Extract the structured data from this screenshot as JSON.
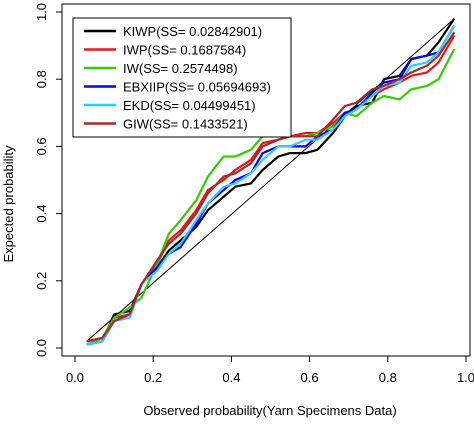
{
  "chart_data": {
    "type": "line",
    "xlabel": "Observed probability(Yarn Specimens Data)",
    "ylabel": "Expected probability",
    "xlim": [
      0,
      1
    ],
    "ylim": [
      0,
      1
    ],
    "x_ticks": [
      "0.0",
      "0.2",
      "0.4",
      "0.6",
      "0.8",
      "1.0"
    ],
    "y_ticks": [
      "0.0",
      "0.2",
      "0.4",
      "0.6",
      "0.8",
      "1.0"
    ],
    "grid": false,
    "legend_position": "top-left",
    "reference_line": {
      "from": [
        0.03,
        0.02
      ],
      "to": [
        0.97,
        0.98
      ],
      "color": "#000000"
    },
    "x": [
      0.03,
      0.07,
      0.1,
      0.14,
      0.17,
      0.21,
      0.24,
      0.27,
      0.31,
      0.34,
      0.38,
      0.41,
      0.45,
      0.48,
      0.52,
      0.55,
      0.59,
      0.62,
      0.66,
      0.69,
      0.72,
      0.76,
      0.79,
      0.83,
      0.86,
      0.9,
      0.93,
      0.97
    ],
    "series": [
      {
        "name": "KIWP(SS= 0.02842901)",
        "color": "#000000",
        "values": [
          0.01,
          0.02,
          0.1,
          0.11,
          0.19,
          0.24,
          0.29,
          0.32,
          0.36,
          0.41,
          0.45,
          0.48,
          0.49,
          0.53,
          0.57,
          0.58,
          0.58,
          0.59,
          0.64,
          0.69,
          0.72,
          0.73,
          0.8,
          0.81,
          0.86,
          0.87,
          0.91,
          0.98
        ]
      },
      {
        "name": "IWP(SS= 0.1687584)",
        "color": "#e31a1c",
        "values": [
          0.02,
          0.03,
          0.09,
          0.1,
          0.19,
          0.25,
          0.32,
          0.35,
          0.41,
          0.47,
          0.5,
          0.53,
          0.56,
          0.61,
          0.62,
          0.63,
          0.64,
          0.64,
          0.67,
          0.7,
          0.71,
          0.75,
          0.77,
          0.79,
          0.81,
          0.82,
          0.85,
          0.93
        ]
      },
      {
        "name": "IW(SS= 0.2574498)",
        "color": "#33cc00",
        "values": [
          0.01,
          0.03,
          0.09,
          0.12,
          0.15,
          0.25,
          0.34,
          0.38,
          0.44,
          0.51,
          0.57,
          0.57,
          0.59,
          0.63,
          0.63,
          0.63,
          0.63,
          0.64,
          0.66,
          0.7,
          0.69,
          0.73,
          0.75,
          0.74,
          0.77,
          0.78,
          0.8,
          0.89
        ]
      },
      {
        "name": "EBXIIP(SS= 0.05694693)",
        "color": "#0000ff",
        "values": [
          0.01,
          0.02,
          0.08,
          0.1,
          0.19,
          0.24,
          0.28,
          0.3,
          0.37,
          0.43,
          0.47,
          0.5,
          0.52,
          0.58,
          0.6,
          0.6,
          0.6,
          0.63,
          0.65,
          0.7,
          0.71,
          0.76,
          0.79,
          0.8,
          0.86,
          0.87,
          0.88,
          0.96
        ]
      },
      {
        "name": "EKD(SS= 0.04499451)",
        "color": "#33ccff",
        "values": [
          0.01,
          0.02,
          0.08,
          0.09,
          0.19,
          0.23,
          0.28,
          0.31,
          0.38,
          0.43,
          0.48,
          0.49,
          0.52,
          0.56,
          0.6,
          0.6,
          0.62,
          0.62,
          0.65,
          0.69,
          0.71,
          0.75,
          0.78,
          0.79,
          0.84,
          0.85,
          0.88,
          0.96
        ]
      },
      {
        "name": "GIW(SS= 0.1433521)",
        "color": "#a52a2a",
        "values": [
          0.02,
          0.03,
          0.08,
          0.1,
          0.19,
          0.26,
          0.31,
          0.34,
          0.4,
          0.46,
          0.51,
          0.52,
          0.55,
          0.6,
          0.62,
          0.63,
          0.63,
          0.63,
          0.68,
          0.72,
          0.73,
          0.77,
          0.78,
          0.8,
          0.82,
          0.84,
          0.87,
          0.94
        ]
      }
    ]
  }
}
